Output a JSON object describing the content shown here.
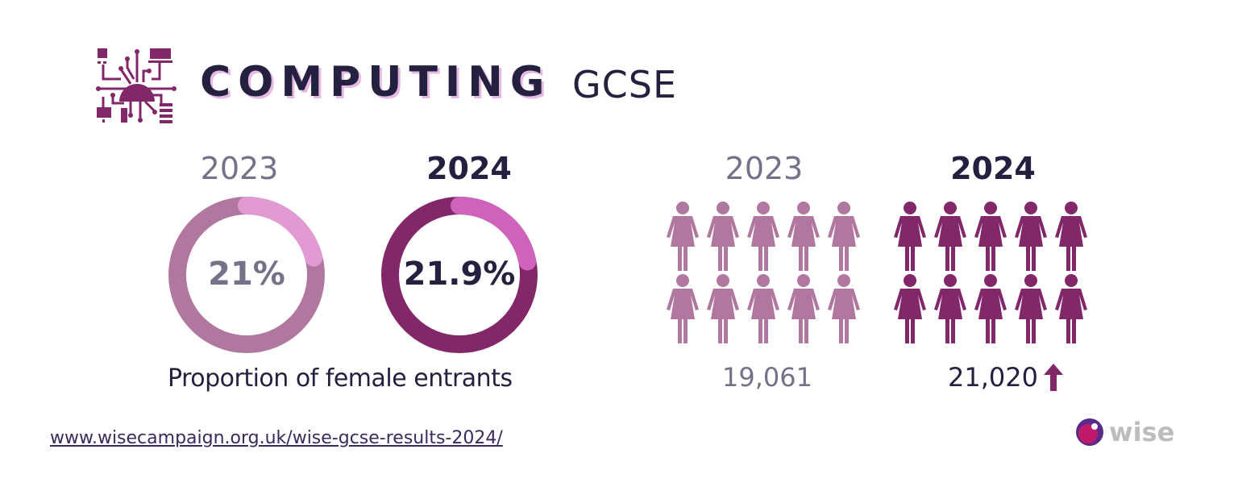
{
  "header": {
    "title": "COMPUTING",
    "subtitle": "GCSE",
    "icon": "circuit-brain-icon"
  },
  "colors": {
    "dark_text": "#24203f",
    "muted_text": "#767089",
    "ring_2023_base": "#b0789f",
    "ring_2023_highlight": "#e29ad3",
    "ring_2024_base": "#82276a",
    "ring_2024_highlight": "#cf63bb",
    "person_2023": "#b0789f",
    "person_2024": "#82276a",
    "arrow": "#82276a"
  },
  "proportion": {
    "caption": "Proportion of female entrants",
    "items": [
      {
        "year": "2023",
        "value_label": "21%",
        "value": 21
      },
      {
        "year": "2024",
        "value_label": "21.9%",
        "value": 21.9
      }
    ]
  },
  "entrants": {
    "items": [
      {
        "year": "2023",
        "count_label": "19,061",
        "icons": 10
      },
      {
        "year": "2024",
        "count_label": "21,020",
        "icons": 10,
        "trend": "up-arrow-icon"
      }
    ]
  },
  "footer": {
    "link": "www.wisecampaign.org.uk/wise-gcse-results-2024/",
    "brand": "wise"
  },
  "chart_data": [
    {
      "type": "pie",
      "title": "Proportion of female entrants",
      "categories": [
        "2023",
        "2024"
      ],
      "values": [
        21,
        21.9
      ],
      "unit": "%"
    },
    {
      "type": "bar",
      "title": "Female entrants (Computing GCSE)",
      "categories": [
        "2023",
        "2024"
      ],
      "values": [
        19061,
        21020
      ]
    }
  ]
}
